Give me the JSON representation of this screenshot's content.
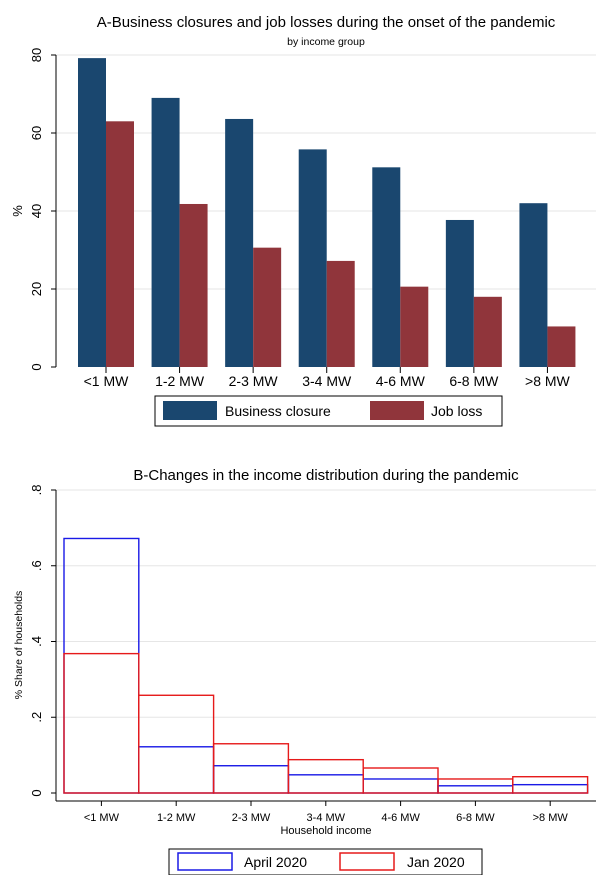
{
  "chart_data": [
    {
      "type": "bar",
      "title": "A-Business closures and job losses during the onset of the pandemic",
      "subtitle": "by income group",
      "xlabel": "",
      "ylabel": "%",
      "ylim": [
        0,
        80
      ],
      "yticks": [
        0,
        20,
        40,
        60,
        80
      ],
      "ytick_labels": [
        "0",
        "20",
        "40",
        "60",
        "80"
      ],
      "grid": true,
      "categories": [
        "<1 MW",
        "1-2 MW",
        "2-3 MW",
        "3-4 MW",
        "4-6 MW",
        "6-8 MW",
        ">8 MW"
      ],
      "series": [
        {
          "name": "Business closure",
          "color": "#1a476f",
          "values": [
            79.2,
            69.0,
            63.6,
            55.8,
            51.2,
            37.7,
            42.0
          ]
        },
        {
          "name": "Job loss",
          "color": "#90353b",
          "values": [
            63.0,
            41.8,
            30.6,
            27.2,
            20.6,
            18.0,
            10.4
          ]
        }
      ],
      "legend_position": "bottom"
    },
    {
      "type": "bar",
      "style": "outline-histogram",
      "title": "B-Changes in the income distribution during the pandemic",
      "xlabel": "Household income",
      "ylabel": "% Share of households",
      "ylim": [
        0,
        0.8
      ],
      "yticks": [
        0,
        0.2,
        0.4,
        0.6,
        0.8
      ],
      "ytick_labels": [
        "0",
        ".2",
        ".4",
        ".6",
        ".8"
      ],
      "grid": true,
      "categories": [
        "<1 MW",
        "1-2 MW",
        "2-3 MW",
        "3-4 MW",
        "4-6 MW",
        "6-8 MW",
        ">8 MW"
      ],
      "series": [
        {
          "name": "April 2020",
          "color": "#1a1ae6",
          "values": [
            0.672,
            0.122,
            0.072,
            0.048,
            0.037,
            0.019,
            0.022
          ]
        },
        {
          "name": "Jan 2020",
          "color": "#e61a1a",
          "values": [
            0.368,
            0.258,
            0.13,
            0.088,
            0.066,
            0.037,
            0.043
          ]
        }
      ],
      "legend_position": "bottom"
    }
  ]
}
